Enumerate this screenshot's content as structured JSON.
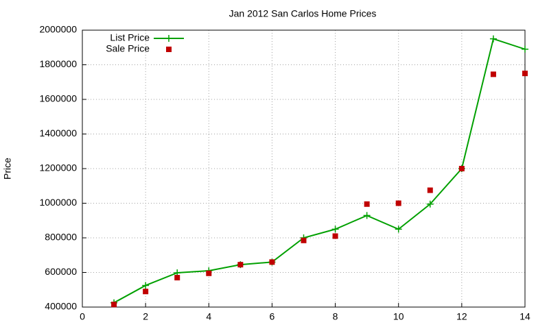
{
  "chart_data": {
    "type": "line",
    "title": "Jan 2012 San Carlos Home Prices",
    "y_label": "Price",
    "x": [
      1,
      2,
      3,
      4,
      5,
      6,
      7,
      8,
      9,
      10,
      11,
      12,
      13,
      14
    ],
    "series": [
      {
        "name": "List Price",
        "color": "#00a000",
        "mode": "linespoints",
        "values": [
          425000,
          525000,
          598000,
          610000,
          645000,
          660000,
          800000,
          850000,
          929000,
          850000,
          995000,
          1200000,
          1950000,
          1890000
        ]
      },
      {
        "name": "Sale Price",
        "color": "#c00000",
        "mode": "points",
        "values": [
          415000,
          490000,
          570000,
          595000,
          645000,
          660000,
          785000,
          810000,
          995000,
          1000000,
          1075000,
          1200000,
          1745000,
          1750000
        ]
      }
    ],
    "xlim": [
      0,
      14
    ],
    "xticks": [
      0,
      2,
      4,
      6,
      8,
      10,
      12,
      14
    ],
    "ylim": [
      400000,
      2000000
    ],
    "yticks": [
      400000,
      600000,
      800000,
      1000000,
      1200000,
      1400000,
      1600000,
      1800000,
      2000000
    ],
    "grid": true,
    "legend": "top-left"
  }
}
